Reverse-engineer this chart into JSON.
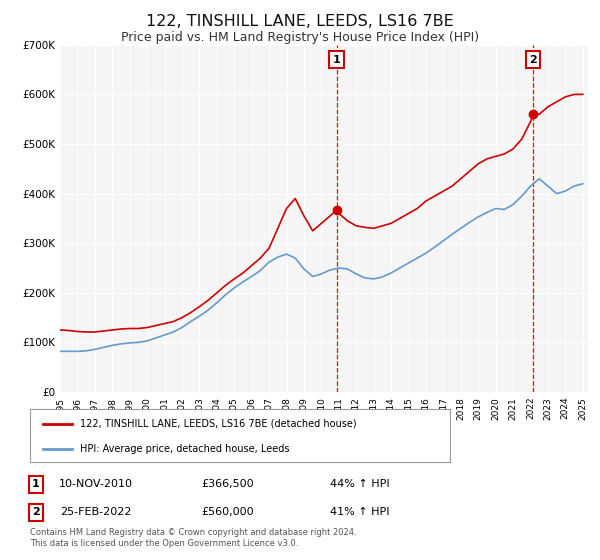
{
  "title": "122, TINSHILL LANE, LEEDS, LS16 7BE",
  "subtitle": "Price paid vs. HM Land Registry's House Price Index (HPI)",
  "title_fontsize": 13,
  "subtitle_fontsize": 10,
  "background_color": "#ffffff",
  "plot_background_color": "#f5f5f5",
  "grid_color": "#ffffff",
  "ylim": [
    0,
    700000
  ],
  "yticks": [
    0,
    100000,
    200000,
    300000,
    400000,
    500000,
    600000,
    700000
  ],
  "ytick_labels": [
    "£0",
    "£100K",
    "£200K",
    "£300K",
    "£400K",
    "£500K",
    "£600K",
    "£700K"
  ],
  "xlim_start": 1995.0,
  "xlim_end": 2025.3,
  "xtick_years": [
    1995,
    1996,
    1997,
    1998,
    1999,
    2000,
    2001,
    2002,
    2003,
    2004,
    2005,
    2006,
    2007,
    2008,
    2009,
    2010,
    2011,
    2012,
    2013,
    2014,
    2015,
    2016,
    2017,
    2018,
    2019,
    2020,
    2021,
    2022,
    2023,
    2024,
    2025
  ],
  "red_line_color": "#cc0000",
  "blue_line_color": "#6699cc",
  "marker_color": "#cc0000",
  "annotation_box_color": "#cc0000",
  "annotation_text_color": "#ffffff",
  "legend_box_color": "#ffffff",
  "legend_border_color": "#aaaaaa",
  "legend_label_red": "122, TINSHILL LANE, LEEDS, LS16 7BE (detached house)",
  "legend_label_blue": "HPI: Average price, detached house, Leeds",
  "sale1_label": "1",
  "sale1_date": "10-NOV-2010",
  "sale1_price": "£366,500",
  "sale1_hpi": "44% ↑ HPI",
  "sale1_year": 2010.87,
  "sale1_value": 366500,
  "sale2_label": "2",
  "sale2_date": "25-FEB-2022",
  "sale2_price": "£560,000",
  "sale2_hpi": "41% ↑ HPI",
  "sale2_year": 2022.16,
  "sale2_value": 560000,
  "footer_text": "Contains HM Land Registry data © Crown copyright and database right 2024.\nThis data is licensed under the Open Government Licence v3.0.",
  "red_x": [
    1995.0,
    1995.5,
    1996.0,
    1996.5,
    1997.0,
    1997.5,
    1998.0,
    1998.5,
    1999.0,
    1999.5,
    2000.0,
    2000.5,
    2001.0,
    2001.5,
    2002.0,
    2002.5,
    2003.0,
    2003.5,
    2004.0,
    2004.5,
    2005.0,
    2005.5,
    2006.0,
    2006.5,
    2007.0,
    2007.5,
    2008.0,
    2008.5,
    2009.0,
    2009.5,
    2010.0,
    2010.5,
    2010.87,
    2011.0,
    2011.5,
    2012.0,
    2012.5,
    2013.0,
    2013.5,
    2014.0,
    2014.5,
    2015.0,
    2015.5,
    2016.0,
    2016.5,
    2017.0,
    2017.5,
    2018.0,
    2018.5,
    2019.0,
    2019.5,
    2020.0,
    2020.5,
    2021.0,
    2021.5,
    2022.0,
    2022.16,
    2022.5,
    2023.0,
    2023.5,
    2024.0,
    2024.5,
    2025.0
  ],
  "red_y": [
    125000,
    124000,
    122000,
    121000,
    121000,
    123000,
    125000,
    127000,
    128000,
    128000,
    130000,
    134000,
    138000,
    142000,
    150000,
    160000,
    172000,
    185000,
    200000,
    215000,
    228000,
    240000,
    255000,
    270000,
    290000,
    330000,
    370000,
    390000,
    355000,
    325000,
    340000,
    355000,
    366500,
    360000,
    345000,
    335000,
    332000,
    330000,
    335000,
    340000,
    350000,
    360000,
    370000,
    385000,
    395000,
    405000,
    415000,
    430000,
    445000,
    460000,
    470000,
    475000,
    480000,
    490000,
    510000,
    545000,
    560000,
    560000,
    575000,
    585000,
    595000,
    600000,
    600000
  ],
  "blue_x": [
    1995.0,
    1995.5,
    1996.0,
    1996.5,
    1997.0,
    1997.5,
    1998.0,
    1998.5,
    1999.0,
    1999.5,
    2000.0,
    2000.5,
    2001.0,
    2001.5,
    2002.0,
    2002.5,
    2003.0,
    2003.5,
    2004.0,
    2004.5,
    2005.0,
    2005.5,
    2006.0,
    2006.5,
    2007.0,
    2007.5,
    2008.0,
    2008.5,
    2009.0,
    2009.5,
    2010.0,
    2010.5,
    2011.0,
    2011.5,
    2012.0,
    2012.5,
    2013.0,
    2013.5,
    2014.0,
    2014.5,
    2015.0,
    2015.5,
    2016.0,
    2016.5,
    2017.0,
    2017.5,
    2018.0,
    2018.5,
    2019.0,
    2019.5,
    2020.0,
    2020.5,
    2021.0,
    2021.5,
    2022.0,
    2022.5,
    2023.0,
    2023.5,
    2024.0,
    2024.5,
    2025.0
  ],
  "blue_y": [
    82000,
    82000,
    82000,
    83000,
    86000,
    90000,
    94000,
    97000,
    99000,
    100000,
    103000,
    109000,
    115000,
    121000,
    130000,
    142000,
    153000,
    165000,
    180000,
    196000,
    210000,
    222000,
    233000,
    245000,
    262000,
    272000,
    278000,
    270000,
    248000,
    233000,
    238000,
    246000,
    250000,
    248000,
    238000,
    230000,
    228000,
    232000,
    240000,
    250000,
    260000,
    270000,
    280000,
    292000,
    305000,
    318000,
    330000,
    342000,
    353000,
    362000,
    370000,
    368000,
    378000,
    395000,
    415000,
    430000,
    415000,
    400000,
    405000,
    415000,
    420000
  ]
}
